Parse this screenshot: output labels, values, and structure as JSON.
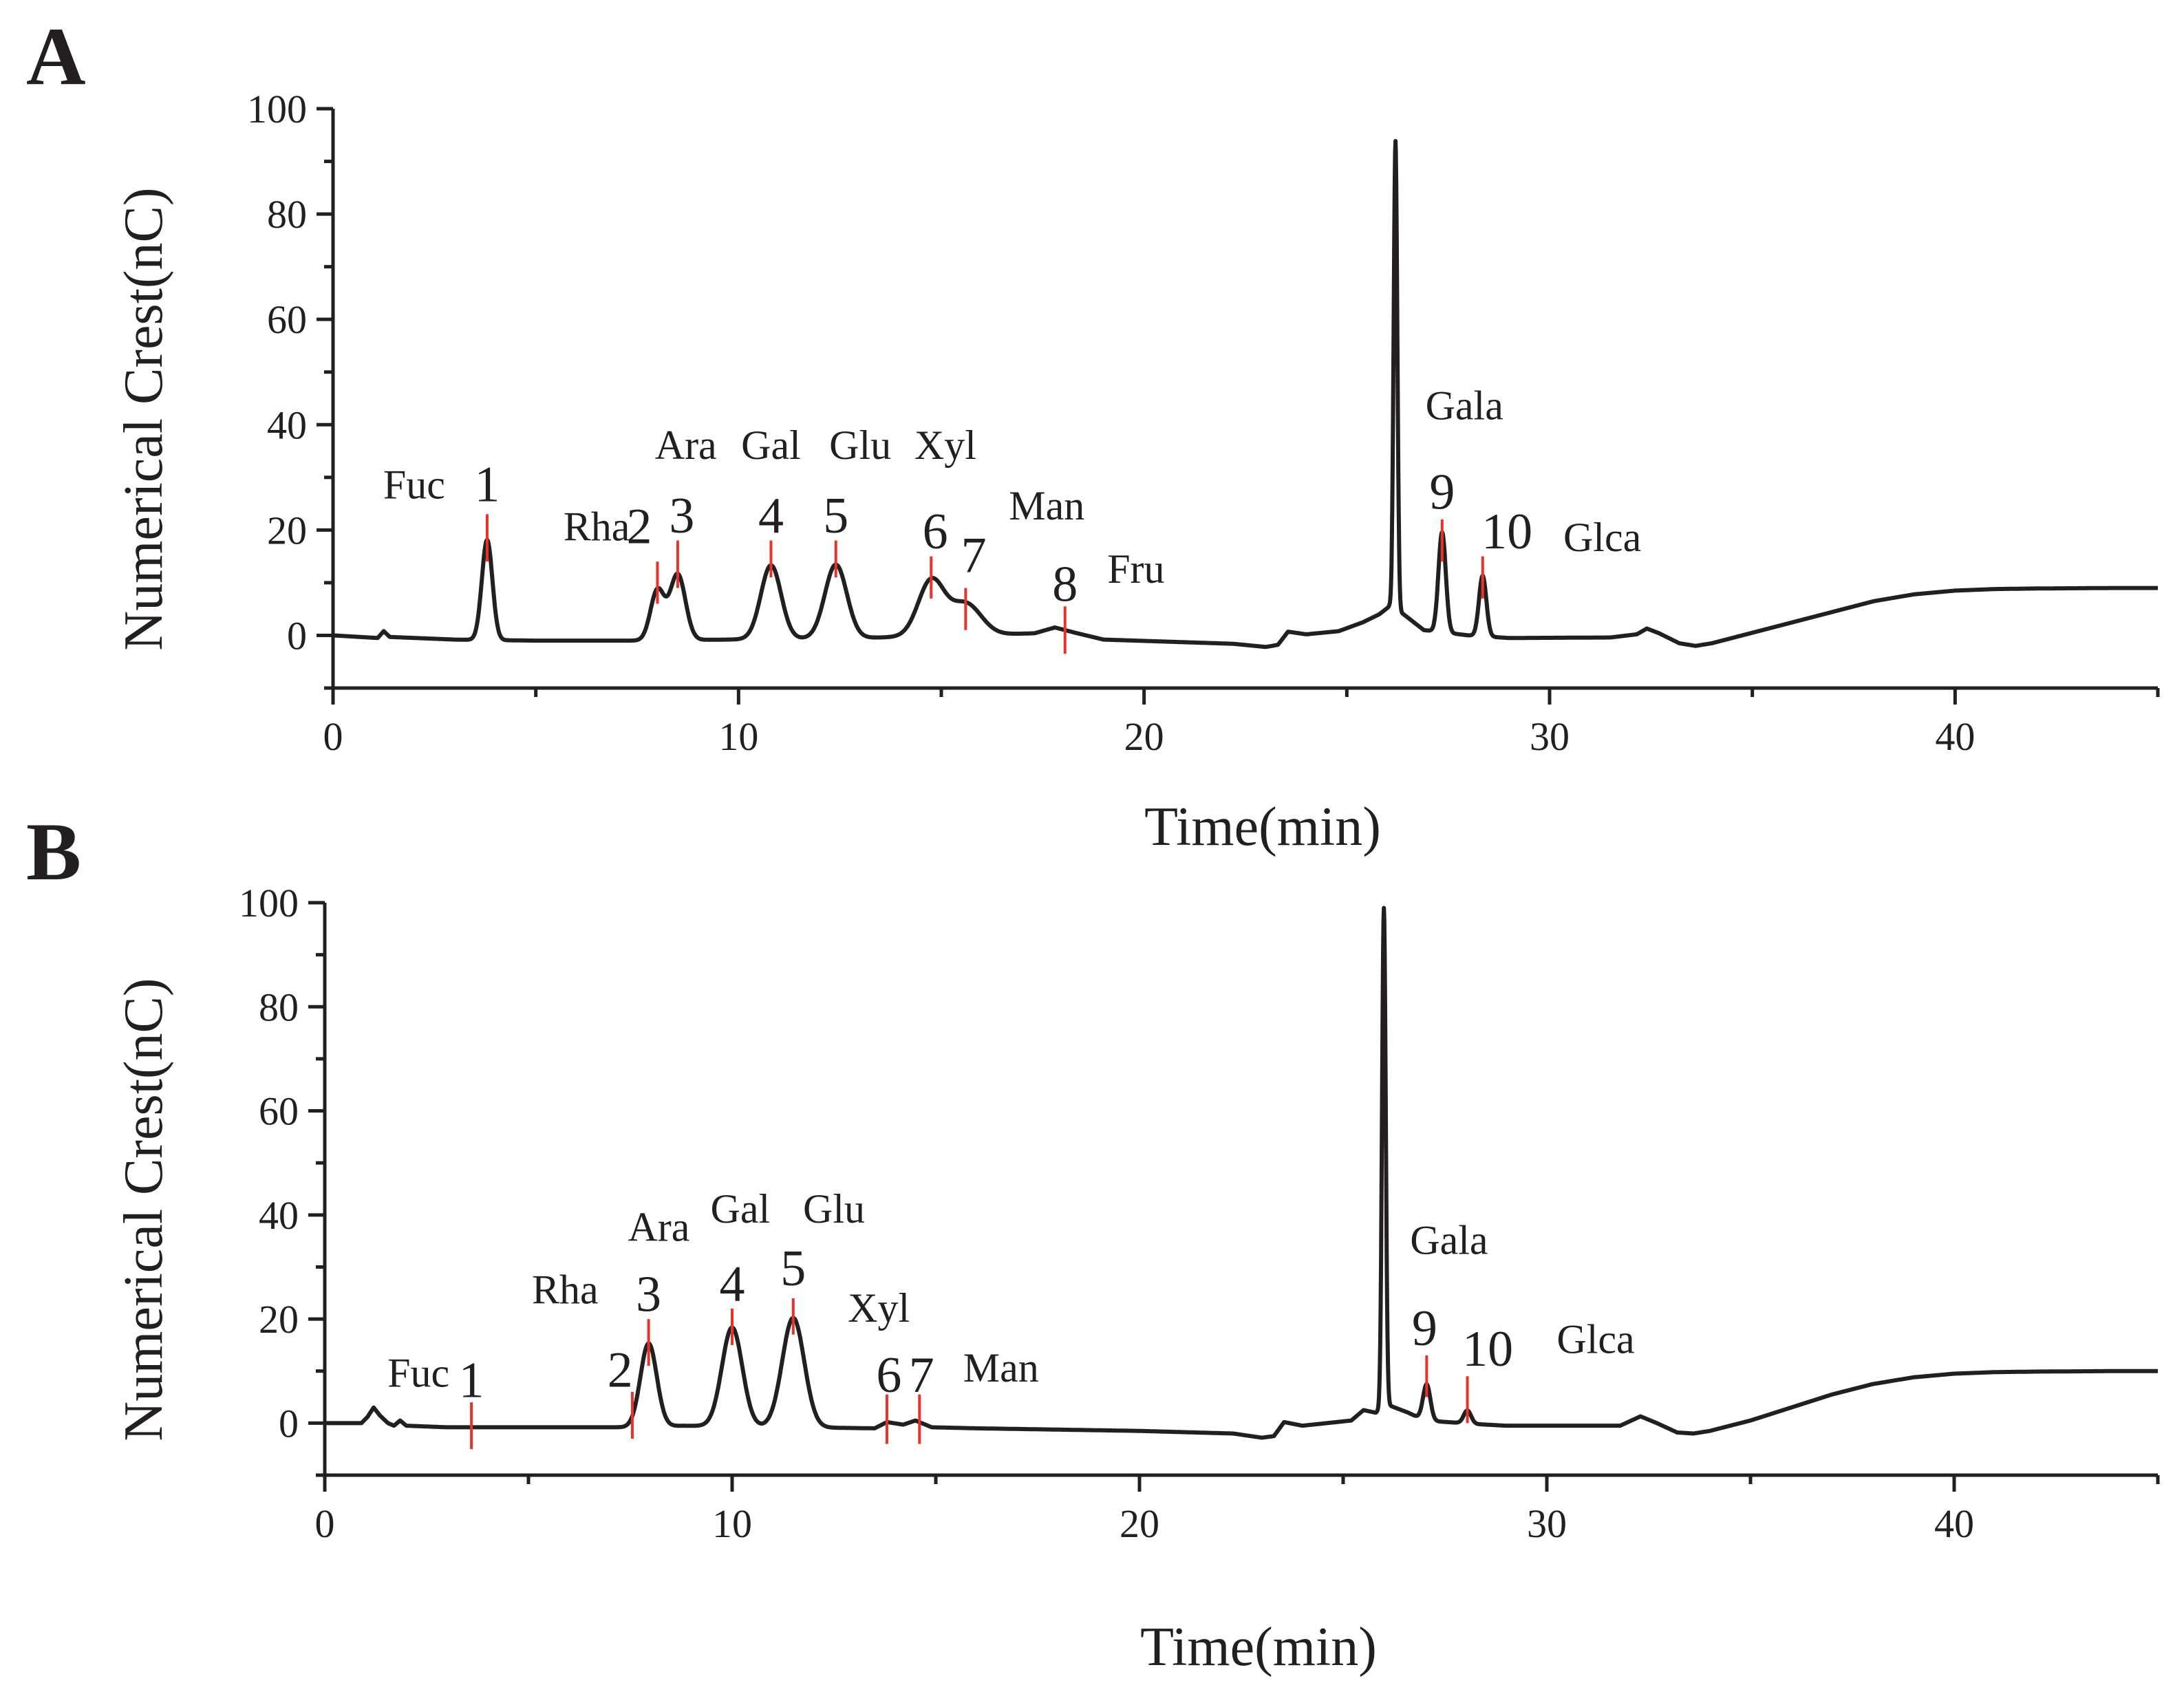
{
  "chart_data": [
    {
      "type": "line",
      "panel": "A",
      "xlabel": "Time(min)",
      "ylabel": "Numerical Crest(nC)",
      "xlim": [
        0,
        45
      ],
      "ylim": [
        -10,
        100
      ],
      "xticks": [
        0,
        10,
        20,
        30,
        40
      ],
      "yticks": [
        0,
        20,
        40,
        60,
        80,
        100
      ],
      "baseline": [
        [
          0,
          0
        ],
        [
          1.1,
          -0.5
        ],
        [
          1.25,
          0.8
        ],
        [
          1.4,
          -0.3
        ],
        [
          3,
          -0.8
        ],
        [
          5,
          -1
        ],
        [
          7.5,
          -1
        ],
        [
          13,
          -0.5
        ],
        [
          16.5,
          0.2
        ],
        [
          17.3,
          0.4
        ],
        [
          17.8,
          1.5
        ],
        [
          18.3,
          0.5
        ],
        [
          19,
          -0.8
        ],
        [
          21,
          -1.3
        ],
        [
          22.2,
          -1.6
        ],
        [
          23,
          -2.2
        ],
        [
          23.3,
          -1.8
        ],
        [
          23.55,
          0.7
        ],
        [
          24,
          0.2
        ],
        [
          24.8,
          0.8
        ],
        [
          25.4,
          2.5
        ],
        [
          25.8,
          4
        ],
        [
          26.05,
          5.5
        ],
        [
          26.4,
          4
        ],
        [
          26.9,
          1
        ],
        [
          28,
          0
        ],
        [
          29,
          -0.5
        ],
        [
          31.5,
          -0.4
        ],
        [
          32.15,
          0.2
        ],
        [
          32.4,
          1.3
        ],
        [
          32.7,
          0.4
        ],
        [
          33.2,
          -1.5
        ],
        [
          33.6,
          -2
        ],
        [
          34,
          -1.5
        ],
        [
          34.5,
          -0.5
        ],
        [
          35,
          0.5
        ],
        [
          36,
          2.5
        ],
        [
          37,
          4.5
        ],
        [
          38,
          6.5
        ],
        [
          39,
          7.8
        ],
        [
          40,
          8.5
        ],
        [
          41,
          8.8
        ],
        [
          42,
          8.9
        ],
        [
          44,
          9
        ],
        [
          45,
          9
        ]
      ],
      "peaks": [
        {
          "t": 3.8,
          "h": 19,
          "w": 0.13
        },
        {
          "t": 8.0,
          "h": 9.5,
          "w": 0.17
        },
        {
          "t": 8.5,
          "h": 12.5,
          "w": 0.19
        },
        {
          "t": 10.8,
          "h": 14,
          "w": 0.25
        },
        {
          "t": 12.4,
          "h": 14,
          "w": 0.27
        },
        {
          "t": 14.75,
          "h": 10.5,
          "w": 0.32
        },
        {
          "t": 15.6,
          "h": 6,
          "w": 0.38
        },
        {
          "t": 26.2,
          "h": 89,
          "w": 0.045
        },
        {
          "t": 27.35,
          "h": 19,
          "w": 0.09
        },
        {
          "t": 28.35,
          "h": 11.5,
          "w": 0.09
        }
      ],
      "markers": [
        {
          "t": 3.8,
          "y1": 14,
          "y2": 23
        },
        {
          "t": 8.0,
          "y1": 6,
          "y2": 14
        },
        {
          "t": 8.5,
          "y1": 9,
          "y2": 18
        },
        {
          "t": 10.8,
          "y1": 11,
          "y2": 18
        },
        {
          "t": 12.4,
          "y1": 11,
          "y2": 18
        },
        {
          "t": 14.75,
          "y1": 7,
          "y2": 15
        },
        {
          "t": 15.6,
          "y1": 1,
          "y2": 9
        },
        {
          "t": 18.05,
          "y1": -3.5,
          "y2": 5.5
        },
        {
          "t": 27.35,
          "y1": 14,
          "y2": 22
        },
        {
          "t": 28.35,
          "y1": 7,
          "y2": 15
        }
      ],
      "peak_numbers": [
        {
          "text": "1",
          "t": 3.8,
          "y": 25.5
        },
        {
          "text": "2",
          "t": 7.55,
          "y": 17.5
        },
        {
          "text": "3",
          "t": 8.6,
          "y": 19.5
        },
        {
          "text": "4",
          "t": 10.8,
          "y": 19.5
        },
        {
          "text": "5",
          "t": 12.4,
          "y": 19.5
        },
        {
          "text": "6",
          "t": 14.85,
          "y": 16.5
        },
        {
          "text": "7",
          "t": 15.8,
          "y": 12
        },
        {
          "text": "8",
          "t": 18.05,
          "y": 6.5
        },
        {
          "text": "9",
          "t": 27.35,
          "y": 24
        },
        {
          "text": "10",
          "t": 28.95,
          "y": 16.5
        }
      ],
      "sugar_labels": [
        {
          "text": "Fuc",
          "t": 2.0,
          "y": 26
        },
        {
          "text": "Rha",
          "t": 6.5,
          "y": 18
        },
        {
          "text": "Ara",
          "t": 8.7,
          "y": 33.5
        },
        {
          "text": "Gal",
          "t": 10.8,
          "y": 33.5
        },
        {
          "text": "Glu",
          "t": 13.0,
          "y": 33.5
        },
        {
          "text": "Xyl",
          "t": 15.1,
          "y": 33.5
        },
        {
          "text": "Man",
          "t": 17.6,
          "y": 22
        },
        {
          "text": "Fru",
          "t": 19.8,
          "y": 10
        },
        {
          "text": "Gala",
          "t": 27.9,
          "y": 41
        },
        {
          "text": "Glca",
          "t": 31.3,
          "y": 16
        }
      ]
    },
    {
      "type": "line",
      "panel": "B",
      "xlabel": "Time(min)",
      "ylabel": "Numerical Crest(nC)",
      "xlim": [
        0,
        45
      ],
      "ylim": [
        -10,
        100
      ],
      "xticks": [
        0,
        10,
        20,
        30,
        40
      ],
      "yticks": [
        0,
        20,
        40,
        60,
        80,
        100
      ],
      "baseline": [
        [
          0,
          0
        ],
        [
          0.9,
          0
        ],
        [
          1.05,
          1.2
        ],
        [
          1.2,
          3
        ],
        [
          1.35,
          1.5
        ],
        [
          1.55,
          0
        ],
        [
          1.7,
          -0.5
        ],
        [
          1.85,
          0.5
        ],
        [
          2.0,
          -0.5
        ],
        [
          3,
          -0.8
        ],
        [
          6,
          -0.8
        ],
        [
          7.4,
          -0.8
        ],
        [
          8.8,
          -0.5
        ],
        [
          13.5,
          -1
        ],
        [
          13.8,
          0.2
        ],
        [
          14.2,
          -0.3
        ],
        [
          14.5,
          0.5
        ],
        [
          14.9,
          -0.8
        ],
        [
          16,
          -1
        ],
        [
          20,
          -1.5
        ],
        [
          22.3,
          -2
        ],
        [
          23,
          -2.8
        ],
        [
          23.3,
          -2.5
        ],
        [
          23.55,
          0.2
        ],
        [
          24,
          -0.5
        ],
        [
          25.2,
          0.5
        ],
        [
          25.5,
          2.5
        ],
        [
          25.8,
          2
        ],
        [
          26.1,
          3.5
        ],
        [
          26.6,
          2
        ],
        [
          27.0,
          0.5
        ],
        [
          28.3,
          -0.2
        ],
        [
          29,
          -0.5
        ],
        [
          31.8,
          -0.5
        ],
        [
          32.3,
          1.3
        ],
        [
          32.7,
          0
        ],
        [
          33.2,
          -1.8
        ],
        [
          33.6,
          -2
        ],
        [
          34,
          -1.5
        ],
        [
          35,
          0.5
        ],
        [
          36,
          3
        ],
        [
          37,
          5.5
        ],
        [
          38,
          7.5
        ],
        [
          39,
          8.8
        ],
        [
          40,
          9.5
        ],
        [
          41,
          9.8
        ],
        [
          42,
          9.9
        ],
        [
          44,
          10
        ],
        [
          45,
          10
        ]
      ],
      "peaks": [
        {
          "t": 7.95,
          "h": 16,
          "w": 0.2
        },
        {
          "t": 10.0,
          "h": 19,
          "w": 0.25
        },
        {
          "t": 11.5,
          "h": 21,
          "w": 0.27
        },
        {
          "t": 26.0,
          "h": 96,
          "w": 0.045
        },
        {
          "t": 27.05,
          "h": 7,
          "w": 0.09
        },
        {
          "t": 28.05,
          "h": 2.5,
          "w": 0.09
        }
      ],
      "markers": [
        {
          "t": 3.6,
          "y1": -5,
          "y2": 4
        },
        {
          "t": 7.55,
          "y1": -3,
          "y2": 6
        },
        {
          "t": 7.95,
          "y1": 11,
          "y2": 20
        },
        {
          "t": 10.0,
          "y1": 15,
          "y2": 22
        },
        {
          "t": 11.5,
          "y1": 17,
          "y2": 24
        },
        {
          "t": 13.8,
          "y1": -4,
          "y2": 5.5
        },
        {
          "t": 14.6,
          "y1": -4,
          "y2": 5.5
        },
        {
          "t": 27.05,
          "y1": 5,
          "y2": 13
        },
        {
          "t": 28.05,
          "y1": 0,
          "y2": 9
        }
      ],
      "peak_numbers": [
        {
          "text": "1",
          "t": 3.6,
          "y": 5
        },
        {
          "text": "2",
          "t": 7.25,
          "y": 7
        },
        {
          "text": "3",
          "t": 7.95,
          "y": 21.5
        },
        {
          "text": "4",
          "t": 10.0,
          "y": 23.5
        },
        {
          "text": "5",
          "t": 11.5,
          "y": 26.5
        },
        {
          "text": "6",
          "t": 13.85,
          "y": 6
        },
        {
          "text": "7",
          "t": 14.65,
          "y": 6
        },
        {
          "text": "9",
          "t": 27.0,
          "y": 15
        },
        {
          "text": "10",
          "t": 28.55,
          "y": 11
        }
      ],
      "sugar_labels": [
        {
          "text": "Fuc",
          "t": 2.3,
          "y": 7
        },
        {
          "text": "Rha",
          "t": 5.9,
          "y": 23
        },
        {
          "text": "Ara",
          "t": 8.2,
          "y": 35
        },
        {
          "text": "Gal",
          "t": 10.2,
          "y": 38.5
        },
        {
          "text": "Glu",
          "t": 12.5,
          "y": 38.5
        },
        {
          "text": "Xyl",
          "t": 13.6,
          "y": 19.5
        },
        {
          "text": "Man",
          "t": 16.6,
          "y": 8
        },
        {
          "text": "Gala",
          "t": 27.6,
          "y": 32.5
        },
        {
          "text": "Glca",
          "t": 31.2,
          "y": 13.5
        }
      ]
    }
  ]
}
